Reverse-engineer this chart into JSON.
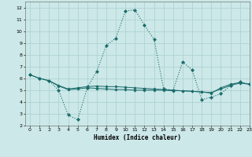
{
  "xlabel": "Humidex (Indice chaleur)",
  "xlim": [
    -0.5,
    23
  ],
  "ylim": [
    2,
    12.5
  ],
  "xticks": [
    0,
    1,
    2,
    3,
    4,
    5,
    6,
    7,
    8,
    9,
    10,
    11,
    12,
    13,
    14,
    15,
    16,
    17,
    18,
    19,
    20,
    21,
    22,
    23
  ],
  "yticks": [
    2,
    3,
    4,
    5,
    6,
    7,
    8,
    9,
    10,
    11,
    12
  ],
  "background_color": "#cce8e8",
  "grid_color": "#aacfcf",
  "line_color": "#1a6b6b",
  "series1": [
    6.3,
    6.0,
    5.8,
    5.0,
    2.9,
    2.5,
    5.2,
    6.6,
    8.8,
    9.4,
    11.7,
    11.8,
    10.5,
    9.3,
    5.1,
    5.0,
    7.4,
    6.7,
    4.2,
    4.4,
    4.7,
    5.4,
    5.7,
    5.5
  ],
  "series2": [
    6.3,
    6.0,
    5.8,
    5.4,
    5.1,
    5.2,
    5.3,
    5.35,
    5.3,
    5.3,
    5.25,
    5.2,
    5.15,
    5.1,
    5.05,
    5.0,
    4.95,
    4.9,
    4.85,
    4.75,
    5.2,
    5.5,
    5.65,
    5.5
  ],
  "series3": [
    6.3,
    6.0,
    5.8,
    5.35,
    5.05,
    5.1,
    5.2,
    5.15,
    5.1,
    5.05,
    5.05,
    5.0,
    5.0,
    5.0,
    5.0,
    4.95,
    4.95,
    4.9,
    4.85,
    4.8,
    5.1,
    5.4,
    5.6,
    5.5
  ]
}
